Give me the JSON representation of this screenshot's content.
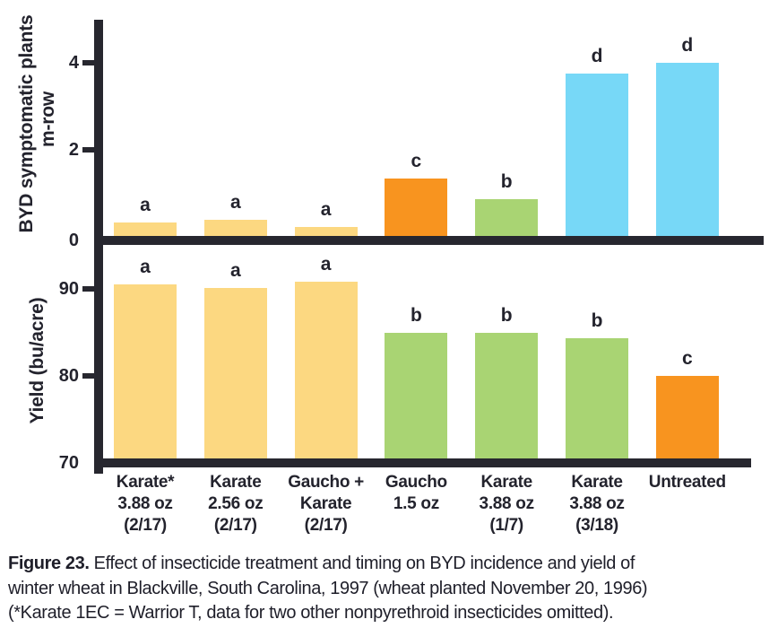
{
  "colors": {
    "yellow": "#FCD881",
    "orange": "#F8941F",
    "green": "#A9D473",
    "cyan": "#77D8F7",
    "axis": "#27272F",
    "text": "#23232D"
  },
  "chart_data": [
    {
      "type": "bar",
      "panel": "top",
      "ylabel": "BYD symptomatic plants m-row",
      "ylabel_lines": [
        "BYD symptomatic plants",
        "m-row"
      ],
      "categories": [
        "Karate* 3.88 oz (2/17)",
        "Karate 2.56 oz (2/17)",
        "Gaucho + Karate (2/17)",
        "Gaucho 1.5 oz",
        "Karate 3.88 oz (1/7)",
        "Karate 3.88 oz (3/18)",
        "Untreated"
      ],
      "values": [
        0.32,
        0.38,
        0.2,
        1.32,
        0.85,
        3.75,
        4.0
      ],
      "sig_letters": [
        "a",
        "a",
        "a",
        "c",
        "b",
        "d",
        "d"
      ],
      "bar_colors": [
        "yellow",
        "yellow",
        "yellow",
        "orange",
        "green",
        "cyan",
        "cyan"
      ],
      "ylim": [
        0,
        5
      ],
      "yticks": [
        0,
        2,
        4
      ],
      "grid": false,
      "legend": "none"
    },
    {
      "type": "bar",
      "panel": "bottom",
      "ylabel": "Yield (bu/acre)",
      "ylabel_lines": [
        "Yield (bu/acre)"
      ],
      "categories": [
        "Karate* 3.88 oz (2/17)",
        "Karate 2.56 oz (2/17)",
        "Gaucho + Karate (2/17)",
        "Gaucho 1.5 oz",
        "Karate 3.88 oz (1/7)",
        "Karate 3.88 oz (3/18)",
        "Untreated"
      ],
      "values": [
        90.5,
        90.1,
        90.8,
        85.0,
        84.9,
        84.3,
        80.0
      ],
      "sig_letters": [
        "a",
        "a",
        "a",
        "b",
        "b",
        "b",
        "c"
      ],
      "bar_colors": [
        "yellow",
        "yellow",
        "yellow",
        "green",
        "green",
        "green",
        "orange"
      ],
      "ylim": [
        70,
        96
      ],
      "yticks": [
        70,
        80,
        90
      ],
      "grid": false,
      "legend": "none"
    }
  ],
  "x_axis": {
    "category_lines": [
      [
        "Karate*",
        "3.88 oz",
        "(2/17)"
      ],
      [
        "Karate",
        "2.56 oz",
        "(2/17)"
      ],
      [
        "Gaucho +",
        "Karate",
        "(2/17)"
      ],
      [
        "Gaucho",
        "1.5 oz"
      ],
      [
        "Karate",
        "3.88 oz",
        "(1/7)"
      ],
      [
        "Karate",
        "3.88 oz",
        "(3/18)"
      ],
      [
        "Untreated"
      ]
    ]
  },
  "caption": {
    "label": "Figure 23.",
    "line1": "Effect of insecticide treatment and timing on BYD incidence and yield of",
    "line2": "winter wheat in Blackville, South Carolina, 1997 (wheat planted November 20, 1996)",
    "line3": "(*Karate 1EC = Warrior T, data for two other nonpyrethroid insecticides omitted)."
  }
}
